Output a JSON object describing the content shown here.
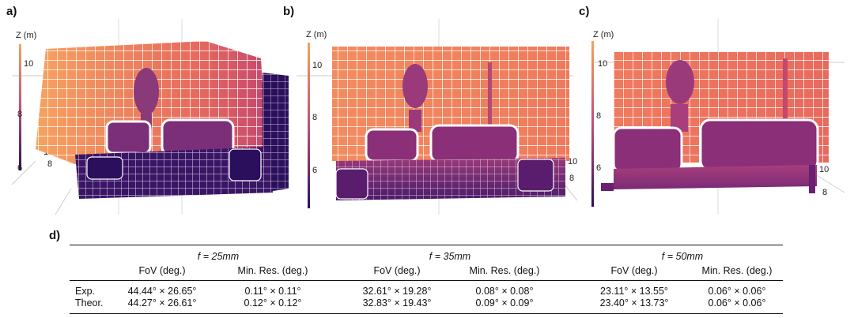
{
  "panels": [
    {
      "letter": "a)",
      "zlabel": "Z (m)",
      "zticks": [
        "10",
        "8",
        "6"
      ],
      "floor_ticks": [
        "10",
        "8"
      ]
    },
    {
      "letter": "b)",
      "zlabel": "Z (m)",
      "zticks": [
        "10",
        "8",
        "6"
      ],
      "floor_ticks": [
        "10",
        "8"
      ]
    },
    {
      "letter": "c)",
      "zlabel": "Z (m)",
      "zticks": [
        "10",
        "8",
        "6"
      ],
      "floor_ticks": [
        "10",
        "8"
      ]
    }
  ],
  "colormap": {
    "near": "#2b0f5c",
    "mid": "#a8407a",
    "far": "#f6a35f"
  },
  "table": {
    "letter": "d)",
    "groups": [
      {
        "header": "f = 25mm",
        "col1": "FoV (deg.)",
        "col2": "Min. Res. (deg.)",
        "exp": [
          "44.44° × 26.65°",
          "0.11° × 0.11°"
        ],
        "theor": [
          "44.27° × 26.61°",
          "0.12° × 0.12°"
        ]
      },
      {
        "header": "f = 35mm",
        "col1": "FoV (deg.)",
        "col2": "Min. Res. (deg.)",
        "exp": [
          "32.61° × 19.28°",
          "0.08° × 0.08°"
        ],
        "theor": [
          "32.83° × 19.43°",
          "0.09° × 0.09°"
        ]
      },
      {
        "header": "f = 50mm",
        "col1": "FoV (deg.)",
        "col2": "Min. Res. (deg.)",
        "exp": [
          "23.11° × 13.55°",
          "0.06° × 0.06°"
        ],
        "theor": [
          "23.40° × 13.73°",
          "0.06° × 0.06°"
        ]
      }
    ],
    "row_labels": [
      "Exp.",
      "Theor."
    ]
  }
}
